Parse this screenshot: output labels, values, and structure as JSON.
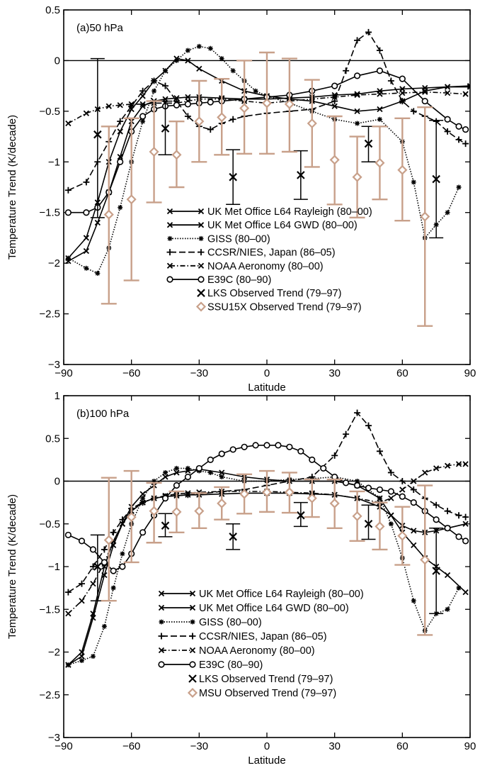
{
  "chart_data": [
    {
      "type": "line",
      "panel_label": "(a)50 hPa",
      "xlabel": "Latitude",
      "ylabel": "Temperature Trend (K/decade)",
      "xlim": [
        -90,
        90
      ],
      "ylim": [
        -3,
        0.5
      ],
      "xticks": [
        -90,
        -60,
        -30,
        0,
        30,
        60,
        90
      ],
      "yticks": [
        -3,
        -2.5,
        -2,
        -1.5,
        -1,
        -0.5,
        0,
        0.5
      ],
      "zero_line": true,
      "legend_position": "bottom-center",
      "colors": {
        "models": "#000000",
        "observed_ssu": "#c8a08a"
      },
      "series": [
        {
          "name": "UK Met Office L64 Rayleigh (80–00)",
          "marker": "x",
          "dash": "solid",
          "x": [
            -88,
            -80,
            -75,
            -70,
            -65,
            -60,
            -55,
            -50,
            -45,
            -40,
            -35,
            -30,
            -20,
            -10,
            0,
            10,
            20,
            30,
            40,
            50,
            60,
            70,
            80,
            90
          ],
          "y": [
            -1.98,
            -1.88,
            -1.6,
            -1.3,
            -0.95,
            -0.6,
            -0.45,
            -0.4,
            -0.38,
            -0.37,
            -0.36,
            -0.36,
            -0.37,
            -0.38,
            -0.38,
            -0.37,
            -0.36,
            -0.34,
            -0.33,
            -0.3,
            -0.28,
            -0.27,
            -0.26,
            -0.26
          ]
        },
        {
          "name": "UK Met Office L64 GWD (80–00)",
          "marker": "x",
          "dash": "solid",
          "x": [
            -88,
            -80,
            -75,
            -70,
            -65,
            -60,
            -55,
            -50,
            -45,
            -40,
            -35,
            -30,
            -20,
            -10,
            0,
            10,
            20,
            30,
            40,
            50,
            60,
            70,
            80,
            90
          ],
          "y": [
            -1.95,
            -1.75,
            -1.4,
            -1.0,
            -0.7,
            -0.48,
            -0.35,
            -0.2,
            -0.1,
            0.02,
            0.0,
            -0.08,
            -0.2,
            -0.3,
            -0.35,
            -0.38,
            -0.4,
            -0.45,
            -0.5,
            -0.48,
            -0.4,
            -0.3,
            -0.26,
            -0.25
          ]
        },
        {
          "name": "GISS (80–00)",
          "marker": "star",
          "dash": "dotted",
          "x": [
            -88,
            -80,
            -75,
            -70,
            -65,
            -60,
            -55,
            -50,
            -45,
            -40,
            -35,
            -30,
            -25,
            -20,
            -15,
            -10,
            -5,
            0,
            10,
            20,
            30,
            40,
            50,
            60,
            65,
            70,
            75,
            80,
            85
          ],
          "y": [
            -1.95,
            -2.05,
            -2.1,
            -1.85,
            -1.45,
            -1.0,
            -0.6,
            -0.3,
            -0.1,
            0.0,
            0.1,
            0.14,
            0.12,
            0.02,
            -0.1,
            -0.2,
            -0.3,
            -0.35,
            -0.42,
            -0.5,
            -0.58,
            -0.62,
            -0.58,
            -0.8,
            -1.2,
            -1.75,
            -1.62,
            -1.5,
            -1.25
          ]
        },
        {
          "name": "CCSR/NIES, Japan (86–05)",
          "marker": "plus",
          "dash": "dashed",
          "x": [
            -88,
            -80,
            -75,
            -70,
            -65,
            -60,
            -55,
            -50,
            -45,
            -40,
            -35,
            -30,
            -25,
            -20,
            -15,
            -10,
            0,
            10,
            20,
            30,
            35,
            40,
            45,
            50,
            55,
            60,
            65,
            70,
            75,
            80,
            85,
            88
          ],
          "y": [
            -1.28,
            -1.2,
            -1.0,
            -0.8,
            -0.6,
            -0.45,
            -0.3,
            -0.2,
            -0.25,
            -0.4,
            -0.55,
            -0.65,
            -0.68,
            -0.62,
            -0.58,
            -0.55,
            -0.52,
            -0.5,
            -0.48,
            -0.4,
            -0.1,
            0.2,
            0.28,
            0.1,
            -0.2,
            -0.4,
            -0.5,
            -0.55,
            -0.6,
            -0.7,
            -0.78,
            -0.82
          ]
        },
        {
          "name": "NOAA Aeronomy (80–00)",
          "marker": "x",
          "dash": "dashdot",
          "x": [
            -88,
            -80,
            -75,
            -70,
            -65,
            -60,
            -55,
            -50,
            -45,
            -40,
            -35,
            -30,
            -20,
            -10,
            0,
            10,
            20,
            30,
            40,
            50,
            60,
            70,
            80,
            88
          ],
          "y": [
            -0.62,
            -0.52,
            -0.48,
            -0.45,
            -0.44,
            -0.43,
            -0.43,
            -0.42,
            -0.42,
            -0.42,
            -0.4,
            -0.38,
            -0.38,
            -0.4,
            -0.42,
            -0.4,
            -0.38,
            -0.36,
            -0.34,
            -0.33,
            -0.32,
            -0.31,
            -0.32,
            -0.33
          ]
        },
        {
          "name": "E39C (80–90)",
          "marker": "circle",
          "dash": "solid",
          "x": [
            -88,
            -80,
            -75,
            -70,
            -65,
            -60,
            -55,
            -50,
            -45,
            -40,
            -35,
            -30,
            -25,
            -20,
            -10,
            0,
            10,
            20,
            30,
            40,
            50,
            60,
            70,
            80,
            85,
            88
          ],
          "y": [
            -1.5,
            -1.5,
            -1.45,
            -1.3,
            -1.0,
            -0.7,
            -0.55,
            -0.48,
            -0.45,
            -0.44,
            -0.43,
            -0.42,
            -0.41,
            -0.4,
            -0.38,
            -0.36,
            -0.34,
            -0.3,
            -0.25,
            -0.15,
            -0.1,
            -0.18,
            -0.4,
            -0.58,
            -0.65,
            -0.68
          ]
        },
        {
          "name": "LKS Observed Trend (79–97)",
          "marker": "bigx",
          "errorbar": true,
          "x": [
            -75,
            -45,
            -15,
            15,
            45,
            75
          ],
          "y": [
            -0.73,
            -0.67,
            -1.15,
            -1.13,
            -0.82,
            -1.17
          ],
          "err_low": [
            -1.55,
            -0.93,
            -1.42,
            -1.37,
            -1.0,
            -1.75
          ],
          "err_high": [
            0.02,
            -0.4,
            -0.88,
            -0.89,
            -0.65,
            -0.59
          ]
        },
        {
          "name": "SSU15X Observed Trend (79–97)",
          "marker": "diamond",
          "errorbar": true,
          "x": [
            -70,
            -60,
            -50,
            -40,
            -30,
            -20,
            -10,
            0,
            10,
            20,
            30,
            40,
            50,
            60,
            70
          ],
          "y": [
            -1.52,
            -1.37,
            -0.9,
            -0.93,
            -0.6,
            -0.56,
            -0.47,
            -0.42,
            -0.43,
            -0.62,
            -0.98,
            -1.15,
            -1.01,
            -1.08,
            -1.54
          ],
          "err_low": [
            -2.4,
            -2.17,
            -1.4,
            -1.25,
            -1.0,
            -0.93,
            -0.92,
            -0.92,
            -0.9,
            -1.05,
            -1.42,
            -1.55,
            -1.37,
            -1.58,
            -2.62
          ],
          "err_high": [
            -0.65,
            -0.57,
            -0.4,
            -0.6,
            -0.2,
            -0.18,
            0.0,
            0.08,
            0.02,
            -0.19,
            -0.55,
            -0.75,
            -0.65,
            -0.57,
            -0.46
          ]
        }
      ]
    },
    {
      "type": "line",
      "panel_label": "(b)100 hPa",
      "xlabel": "Latitude",
      "ylabel": "Temperature Trend (K/decade)",
      "xlim": [
        -90,
        90
      ],
      "ylim": [
        -3,
        1
      ],
      "xticks": [
        -90,
        -60,
        -30,
        0,
        30,
        60,
        90
      ],
      "yticks": [
        -3,
        -2.5,
        -2,
        -1.5,
        -1,
        -0.5,
        0,
        0.5,
        1
      ],
      "zero_line": true,
      "legend_position": "bottom-center",
      "colors": {
        "models": "#000000",
        "observed_msu": "#c8a08a"
      },
      "series": [
        {
          "name": "UK Met Office L64 Rayleigh (80–00)",
          "marker": "x",
          "dash": "solid",
          "x": [
            -88,
            -82,
            -77,
            -72,
            -68,
            -64,
            -60,
            -55,
            -50,
            -45,
            -40,
            -35,
            -30,
            -20,
            -10,
            0,
            10,
            20,
            30,
            40,
            50,
            55,
            60,
            65,
            70,
            75,
            80,
            88
          ],
          "y": [
            -2.15,
            -2.0,
            -1.55,
            -1.0,
            -0.7,
            -0.5,
            -0.35,
            -0.25,
            -0.2,
            -0.18,
            -0.17,
            -0.16,
            -0.16,
            -0.15,
            -0.14,
            -0.14,
            -0.14,
            -0.15,
            -0.16,
            -0.2,
            -0.3,
            -0.4,
            -0.52,
            -0.58,
            -0.6,
            -0.58,
            -0.55,
            -0.5
          ]
        },
        {
          "name": "UK Met Office L64 GWD (80–00)",
          "marker": "x",
          "dash": "solid",
          "x": [
            -88,
            -82,
            -77,
            -72,
            -68,
            -64,
            -60,
            -55,
            -50,
            -45,
            -40,
            -35,
            -30,
            -20,
            -10,
            0,
            10,
            20,
            30,
            40,
            50,
            55,
            60,
            65,
            70,
            75,
            80,
            88
          ],
          "y": [
            -2.15,
            -2.05,
            -1.6,
            -1.1,
            -0.75,
            -0.5,
            -0.3,
            -0.15,
            -0.05,
            0.05,
            0.1,
            0.12,
            0.14,
            0.1,
            0.05,
            0.02,
            0.0,
            0.0,
            0.0,
            -0.05,
            -0.2,
            -0.4,
            -0.6,
            -0.75,
            -0.9,
            -1.0,
            -1.1,
            -1.3
          ]
        },
        {
          "name": "GISS (80–00)",
          "marker": "star",
          "dash": "dotted",
          "x": [
            -88,
            -82,
            -77,
            -72,
            -68,
            -64,
            -60,
            -55,
            -50,
            -45,
            -40,
            -35,
            -30,
            -25,
            -20,
            -10,
            0,
            10,
            20,
            30,
            40,
            50,
            55,
            60,
            65,
            70,
            75,
            80,
            85
          ],
          "y": [
            -2.15,
            -2.1,
            -2.05,
            -1.7,
            -1.25,
            -0.85,
            -0.5,
            -0.2,
            0.0,
            0.1,
            0.15,
            0.15,
            0.12,
            0.1,
            0.05,
            0.0,
            0.0,
            0.02,
            0.03,
            0.05,
            0.0,
            -0.2,
            -0.5,
            -0.9,
            -1.4,
            -1.75,
            -1.55,
            -1.5,
            -1.25
          ]
        },
        {
          "name": "CCSR/NIES, Japan (86–05)",
          "marker": "plus",
          "dash": "dashed",
          "x": [
            -88,
            -82,
            -77,
            -72,
            -68,
            -64,
            -60,
            -55,
            -50,
            -45,
            -40,
            -35,
            -30,
            -20,
            -10,
            0,
            10,
            20,
            30,
            35,
            40,
            45,
            50,
            55,
            60,
            65,
            70,
            75,
            80,
            85,
            88
          ],
          "y": [
            -1.3,
            -1.2,
            -1.0,
            -0.8,
            -0.6,
            -0.45,
            -0.32,
            -0.25,
            -0.2,
            -0.18,
            -0.17,
            -0.16,
            -0.15,
            -0.12,
            -0.1,
            -0.05,
            0.0,
            0.05,
            0.3,
            0.55,
            0.8,
            0.65,
            0.35,
            0.1,
            0.0,
            -0.1,
            -0.2,
            -0.28,
            -0.35,
            -0.4,
            -0.42
          ]
        },
        {
          "name": "NOAA Aeronomy (80–00)",
          "marker": "x",
          "dash": "dashdot",
          "x": [
            -88,
            -82,
            -77,
            -72,
            -68,
            -64,
            -60,
            -55,
            -50,
            -45,
            -40,
            -35,
            -30,
            -20,
            -10,
            0,
            10,
            20,
            30,
            40,
            50,
            55,
            60,
            65,
            70,
            75,
            80,
            85,
            88
          ],
          "y": [
            -1.55,
            -1.4,
            -1.2,
            -0.95,
            -0.7,
            -0.5,
            -0.35,
            -0.25,
            -0.2,
            -0.17,
            -0.15,
            -0.14,
            -0.13,
            -0.12,
            -0.12,
            -0.12,
            -0.13,
            -0.14,
            -0.16,
            -0.2,
            -0.25,
            -0.2,
            -0.1,
            0.0,
            0.1,
            0.15,
            0.18,
            0.2,
            0.2
          ]
        },
        {
          "name": "E39C (80–90)",
          "marker": "circle",
          "dash": "solid",
          "x": [
            -88,
            -82,
            -77,
            -72,
            -68,
            -64,
            -60,
            -55,
            -50,
            -45,
            -40,
            -35,
            -30,
            -25,
            -20,
            -15,
            -10,
            -5,
            0,
            5,
            10,
            15,
            20,
            25,
            30,
            35,
            40,
            45,
            50,
            55,
            60,
            65,
            70,
            75,
            80,
            85,
            88
          ],
          "y": [
            -0.63,
            -0.7,
            -0.8,
            -0.95,
            -1.05,
            -1.0,
            -0.85,
            -0.6,
            -0.4,
            -0.2,
            -0.05,
            0.05,
            0.15,
            0.25,
            0.32,
            0.37,
            0.4,
            0.42,
            0.42,
            0.42,
            0.4,
            0.35,
            0.25,
            0.15,
            0.05,
            -0.02,
            -0.05,
            -0.08,
            -0.1,
            -0.12,
            -0.18,
            -0.25,
            -0.35,
            -0.45,
            -0.55,
            -0.65,
            -0.7
          ]
        },
        {
          "name": "LKS Observed Trend (79–97)",
          "marker": "bigx",
          "errorbar": true,
          "x": [
            -75,
            -45,
            -15,
            15,
            45,
            75
          ],
          "y": [
            -1.0,
            -0.52,
            -0.65,
            -0.4,
            -0.5,
            -1.05
          ],
          "err_low": [
            -1.4,
            -0.65,
            -0.8,
            -0.53,
            -0.68,
            -1.55
          ],
          "err_high": [
            -0.63,
            -0.38,
            -0.5,
            -0.25,
            -0.28,
            -0.55
          ]
        },
        {
          "name": "MSU Observed Trend (79–97)",
          "marker": "diamond",
          "errorbar": true,
          "x": [
            -70,
            -60,
            -50,
            -40,
            -30,
            -20,
            -10,
            0,
            10,
            20,
            30,
            40,
            50,
            60,
            70
          ],
          "y": [
            -0.69,
            -0.42,
            -0.35,
            -0.36,
            -0.35,
            -0.26,
            -0.15,
            -0.13,
            -0.13,
            -0.2,
            -0.26,
            -0.41,
            -0.53,
            -0.64,
            -0.92
          ],
          "err_low": [
            -1.4,
            -0.95,
            -0.72,
            -0.6,
            -0.55,
            -0.45,
            -0.38,
            -0.36,
            -0.37,
            -0.42,
            -0.55,
            -0.7,
            -0.8,
            -0.98,
            -1.8
          ],
          "err_high": [
            0.04,
            0.12,
            -0.02,
            -0.12,
            -0.14,
            -0.07,
            0.08,
            0.12,
            0.1,
            0.02,
            0.02,
            -0.12,
            -0.25,
            -0.3,
            -0.05
          ]
        }
      ]
    }
  ]
}
